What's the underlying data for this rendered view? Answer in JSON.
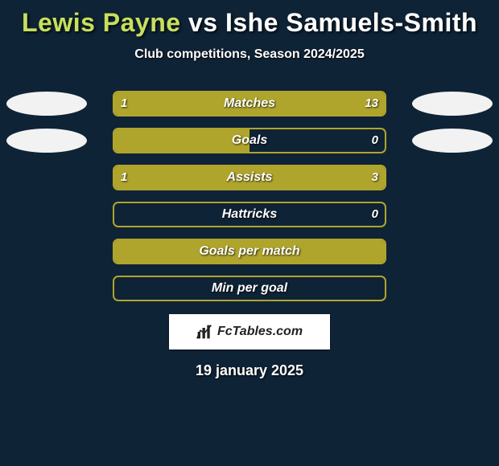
{
  "background_color": "#0f2336",
  "title": {
    "player1": "Lewis Payne",
    "player2": "Ishe Samuels-Smith",
    "vs": " vs ",
    "color1": "#c7e05c",
    "color2": "#ffffff",
    "fontsize": 32
  },
  "subtitle": "Club competitions, Season 2024/2025",
  "accent_color": "#b0a52c",
  "border_color": "#b0a52c",
  "avatar_color": "#f2f2f2",
  "rows": [
    {
      "label": "Matches",
      "left_val": "1",
      "right_val": "13",
      "left_pct": 7,
      "right_pct": 93,
      "show_avatar": true
    },
    {
      "label": "Goals",
      "left_val": "",
      "right_val": "0",
      "left_pct": 50,
      "right_pct": 0,
      "show_avatar": true
    },
    {
      "label": "Assists",
      "left_val": "1",
      "right_val": "3",
      "left_pct": 25,
      "right_pct": 75,
      "show_avatar": false
    },
    {
      "label": "Hattricks",
      "left_val": "",
      "right_val": "0",
      "left_pct": 0,
      "right_pct": 0,
      "show_avatar": false
    },
    {
      "label": "Goals per match",
      "left_val": "",
      "right_val": "",
      "left_pct": 100,
      "right_pct": 0,
      "show_avatar": false
    },
    {
      "label": "Min per goal",
      "left_val": "",
      "right_val": "",
      "left_pct": 0,
      "right_pct": 0,
      "show_avatar": false
    }
  ],
  "logo_text": "FcTables.com",
  "date": "19 january 2025"
}
